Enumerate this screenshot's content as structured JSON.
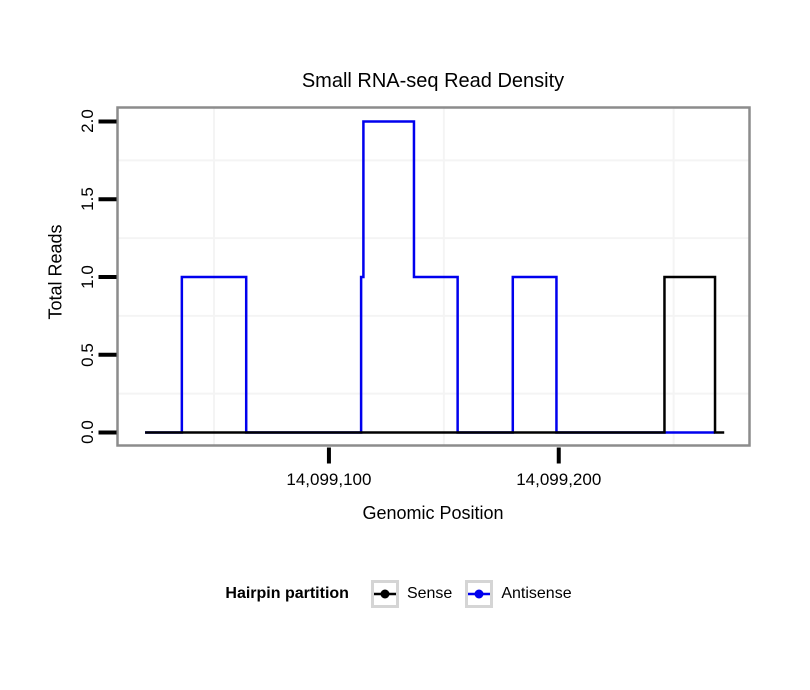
{
  "chart": {
    "title": "Small RNA-seq Read Density",
    "xlabel": "Genomic Position",
    "ylabel": "Total Reads"
  },
  "legend": {
    "title": "Hairpin partition"
  },
  "colors": {
    "sense": "#000000",
    "antisense": "#0000EE",
    "panel_border": "#8C8C8C",
    "grid_minor": "#F4F4F4",
    "tick": "#000000",
    "legend_key_border": "#D5D5D5"
  },
  "chart_data": {
    "type": "line",
    "subtype": "step",
    "title": "Small RNA-seq Read Density",
    "xlabel": "Genomic Position",
    "ylabel": "Total Reads",
    "grid": "minor-only",
    "legend_position": "bottom",
    "legend_title": "Hairpin partition",
    "xlim": [
      14099008,
      14099283
    ],
    "ylim": [
      -0.084,
      2.09
    ],
    "x_ticks": [
      {
        "value": 14099100,
        "label": "14,099,100"
      },
      {
        "value": 14099200,
        "label": "14,099,200"
      }
    ],
    "y_ticks": [
      {
        "value": 0.0,
        "label": "0.0"
      },
      {
        "value": 0.5,
        "label": "0.5"
      },
      {
        "value": 1.0,
        "label": "1.0"
      },
      {
        "value": 1.5,
        "label": "1.5"
      },
      {
        "value": 2.0,
        "label": "2.0"
      }
    ],
    "x_minor_gridlines": [
      14099050,
      14099150,
      14099250
    ],
    "y_minor_gridlines": [
      0.25,
      0.75,
      1.25,
      1.75
    ],
    "series": [
      {
        "name": "Sense",
        "color": "#000000",
        "points": [
          [
            14099020,
            0
          ],
          [
            14099246,
            1
          ],
          [
            14099268,
            0
          ]
        ],
        "x_end": 14099272
      },
      {
        "name": "Antisense",
        "color": "#0000EE",
        "points": [
          [
            14099020,
            0
          ],
          [
            14099036,
            1
          ],
          [
            14099064,
            0
          ],
          [
            14099114,
            1
          ],
          [
            14099115,
            2
          ],
          [
            14099137,
            1
          ],
          [
            14099156,
            0
          ],
          [
            14099180,
            1
          ],
          [
            14099199,
            0
          ]
        ],
        "x_end": 14099268
      }
    ]
  }
}
